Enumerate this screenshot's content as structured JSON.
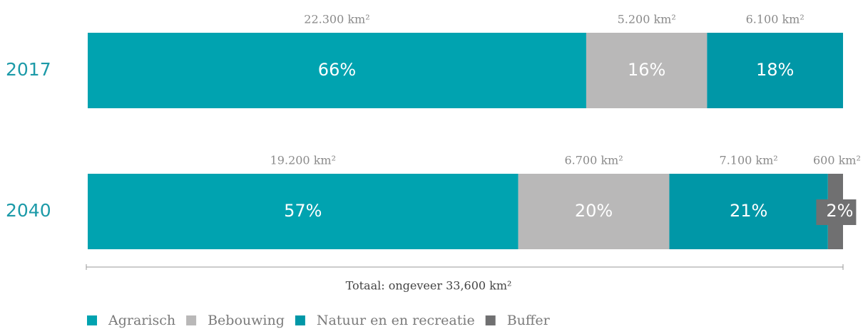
{
  "chart_data": {
    "type": "stacked_bar_horizontal",
    "categories": [
      "2017",
      "2040"
    ],
    "series": [
      {
        "name": "Agrarisch",
        "color": "#00a3b0",
        "values": [
          66,
          57
        ],
        "value_labels": [
          "66%",
          "57%"
        ],
        "area_labels": [
          "22.300 km²",
          "19.200 km²"
        ]
      },
      {
        "name": "Bebouwing",
        "color": "#b9b8b8",
        "values": [
          16,
          20
        ],
        "value_labels": [
          "16%",
          "20%"
        ],
        "area_labels": [
          "5.200 km²",
          "6.700 km²"
        ]
      },
      {
        "name": "Natuur en en recreatie",
        "color": "#0097a7",
        "values": [
          18,
          21
        ],
        "value_labels": [
          "18%",
          "21%"
        ],
        "area_labels": [
          "6.100 km²",
          "7.100 km²"
        ]
      },
      {
        "name": "Buffer",
        "color": "#707071",
        "values": [
          null,
          2
        ],
        "value_labels": [
          null,
          "2%"
        ],
        "area_labels": [
          null,
          "600 km²"
        ]
      }
    ],
    "annotation": "Totaal: ongeveer 33,600  km²"
  }
}
